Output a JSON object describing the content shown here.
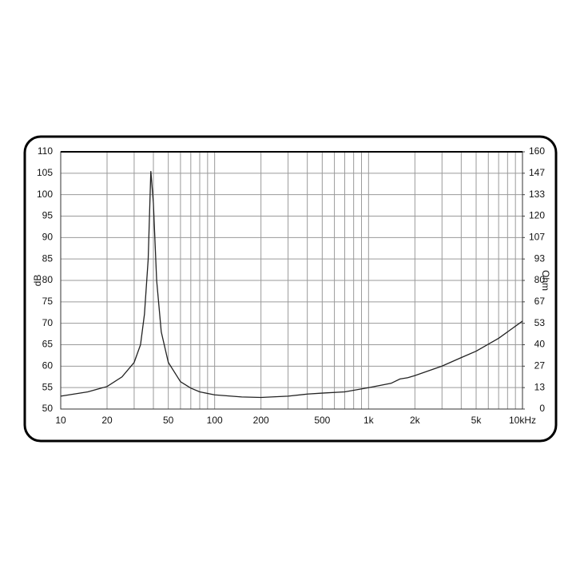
{
  "chart_data": {
    "type": "line",
    "y_label": "dB",
    "y2_label": "Ohm",
    "xscale": "log",
    "xlim": [
      10,
      10000
    ],
    "xticks": [
      10,
      20,
      50,
      100,
      200,
      500,
      {
        "value": 1000,
        "label": "1k"
      },
      {
        "value": 2000,
        "label": "2k"
      },
      {
        "value": 5000,
        "label": "5k"
      },
      {
        "value": 10000,
        "label": "10kHz"
      }
    ],
    "xgrid": [
      30,
      40,
      60,
      70,
      80,
      90,
      300,
      400,
      600,
      700,
      800,
      900,
      3000,
      4000,
      6000,
      7000,
      8000,
      9000
    ],
    "ylim": [
      50,
      110
    ],
    "yticks": [
      50,
      55,
      60,
      65,
      70,
      75,
      80,
      85,
      90,
      95,
      100,
      105,
      110
    ],
    "y2lim": [
      0,
      160
    ],
    "y2ticks": [
      0,
      {
        "value": 13.33,
        "label": "13"
      },
      {
        "value": 26.67,
        "label": "27"
      },
      40,
      {
        "value": 53.33,
        "label": "53"
      },
      {
        "value": 66.67,
        "label": "67"
      },
      80,
      {
        "value": 93.33,
        "label": "93"
      },
      {
        "value": 106.67,
        "label": "107"
      },
      120,
      {
        "value": 133.33,
        "label": "133"
      },
      {
        "value": 146.67,
        "label": "147"
      },
      160
    ],
    "grid": true,
    "series": [
      {
        "color": "#222222",
        "axis": "y2",
        "x": [
          10,
          15,
          20,
          25,
          30,
          33,
          35,
          37,
          38.5,
          40,
          42,
          45,
          50,
          60,
          70,
          80,
          100,
          150,
          200,
          300,
          400,
          500,
          700,
          1000,
          1400,
          1600,
          1800,
          2000,
          3000,
          4000,
          5000,
          7000,
          10000
        ],
        "values": [
          8,
          10.7,
          14,
          20,
          29,
          40,
          59,
          93,
          148,
          128,
          80,
          48,
          29,
          17,
          13,
          10.7,
          8.8,
          7.5,
          7.2,
          8,
          9.3,
          9.9,
          10.7,
          13.3,
          16,
          18.7,
          19.5,
          20.8,
          26.7,
          32,
          36,
          44,
          54.7
        ]
      }
    ]
  }
}
